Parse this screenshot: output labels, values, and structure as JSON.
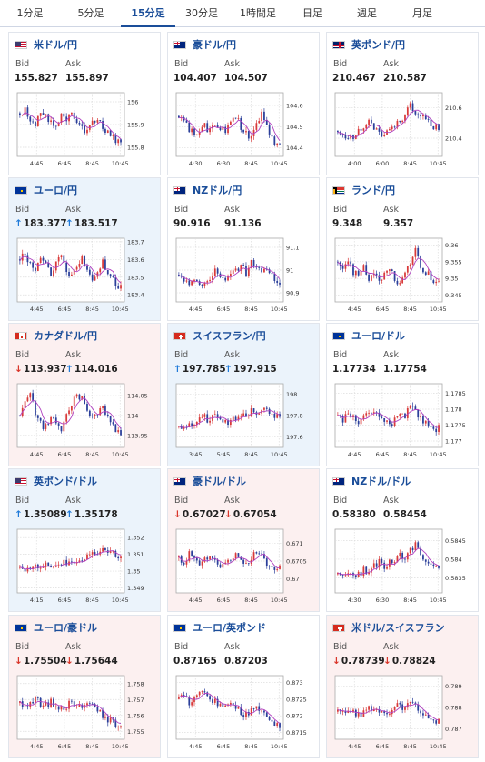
{
  "tabs": [
    "1分足",
    "5分足",
    "15分足",
    "30分足",
    "1時間足",
    "日足",
    "週足",
    "月足"
  ],
  "active_tab": "15分足",
  "labels": {
    "bid": "Bid",
    "ask": "Ask"
  },
  "colors": {
    "accent": "#1a4d99",
    "up_arrow": "#1f7ad9",
    "down_arrow": "#d9362b",
    "candle_up": "#d93a3a",
    "candle_down": "#2b3f9a",
    "ma_line": "#b040c0",
    "card_up_bg": "#ebf3fb",
    "card_down_bg": "#fcf0f0"
  },
  "cards": [
    {
      "name": "米ドル/円",
      "flag": "us",
      "bid": "155.827",
      "ask": "155.897",
      "bid_dir": "none",
      "ask_dir": "none",
      "state": "none",
      "yticks": [
        "156",
        "155.9",
        "155.8"
      ],
      "xticks": [
        "4:45",
        "6:45",
        "8:45",
        "10:45"
      ],
      "chart_data": {
        "type": "candlestick",
        "ylim": [
          155.76,
          156.04
        ],
        "open": 155.95,
        "close": 155.83,
        "values": [
          155.95,
          155.96,
          155.92,
          155.9,
          155.95,
          155.93,
          155.91,
          155.88,
          155.96,
          155.92,
          155.95,
          155.9,
          155.88,
          155.86,
          155.93,
          155.91,
          155.89,
          155.86,
          155.84,
          155.83
        ]
      }
    },
    {
      "name": "豪ドル/円",
      "flag": "au",
      "bid": "104.407",
      "ask": "104.507",
      "bid_dir": "none",
      "ask_dir": "none",
      "state": "none",
      "yticks": [
        "104.6",
        "104.5",
        "104.4"
      ],
      "xticks": [
        "4:30",
        "6:30",
        "8:45",
        "10:45"
      ],
      "chart_data": {
        "type": "candlestick",
        "ylim": [
          104.36,
          104.66
        ],
        "open": 104.55,
        "close": 104.41,
        "values": [
          104.55,
          104.52,
          104.49,
          104.47,
          104.46,
          104.5,
          104.48,
          104.52,
          104.5,
          104.48,
          104.53,
          104.55,
          104.5,
          104.47,
          104.44,
          104.52,
          104.56,
          104.5,
          104.45,
          104.41
        ]
      }
    },
    {
      "name": "英ポンド/円",
      "flag": "gb",
      "bid": "210.467",
      "ask": "210.587",
      "bid_dir": "none",
      "ask_dir": "none",
      "state": "none",
      "yticks": [
        "210.6",
        "210.4"
      ],
      "xticks": [
        "4:00",
        "6:00",
        "8:45",
        "10:45"
      ],
      "chart_data": {
        "type": "candlestick",
        "ylim": [
          210.28,
          210.7
        ],
        "open": 210.45,
        "close": 210.47,
        "values": [
          210.45,
          210.42,
          210.38,
          210.41,
          210.47,
          210.44,
          210.5,
          210.46,
          210.42,
          210.44,
          210.48,
          210.46,
          210.52,
          210.55,
          210.62,
          210.58,
          210.55,
          210.52,
          210.49,
          210.47
        ]
      }
    },
    {
      "name": "ユーロ/円",
      "flag": "eu",
      "bid": "183.377",
      "ask": "183.517",
      "bid_dir": "up",
      "ask_dir": "up",
      "state": "up",
      "yticks": [
        "183.7",
        "183.6",
        "183.5",
        "183.4"
      ],
      "xticks": [
        "4:45",
        "6:45",
        "8:45",
        "10:45"
      ],
      "chart_data": {
        "type": "candlestick",
        "ylim": [
          183.36,
          183.72
        ],
        "open": 183.6,
        "close": 183.45,
        "values": [
          183.6,
          183.63,
          183.58,
          183.55,
          183.6,
          183.56,
          183.53,
          183.58,
          183.61,
          183.55,
          183.5,
          183.57,
          183.62,
          183.55,
          183.48,
          183.52,
          183.58,
          183.52,
          183.48,
          183.45
        ]
      }
    },
    {
      "name": "NZドル/円",
      "flag": "nz",
      "bid": "90.916",
      "ask": "91.136",
      "bid_dir": "none",
      "ask_dir": "none",
      "state": "none",
      "yticks": [
        "91.1",
        "91",
        "90.9"
      ],
      "xticks": [
        "4:45",
        "6:45",
        "8:45",
        "10:45"
      ],
      "chart_data": {
        "type": "candlestick",
        "ylim": [
          90.86,
          91.14
        ],
        "open": 90.98,
        "close": 90.95,
        "values": [
          90.98,
          90.96,
          90.94,
          90.97,
          90.95,
          90.93,
          90.97,
          90.99,
          90.96,
          90.94,
          90.98,
          91.0,
          91.02,
          90.99,
          91.05,
          91.02,
          90.99,
          91.01,
          90.98,
          90.95
        ]
      }
    },
    {
      "name": "ランド/円",
      "flag": "za",
      "bid": "9.348",
      "ask": "9.357",
      "bid_dir": "none",
      "ask_dir": "none",
      "state": "none",
      "yticks": [
        "9.36",
        "9.355",
        "9.35",
        "9.345"
      ],
      "xticks": [
        "4:45",
        "6:45",
        "8:45",
        "10:45"
      ],
      "chart_data": {
        "type": "candlestick",
        "ylim": [
          9.343,
          9.362
        ],
        "open": 9.355,
        "close": 9.349,
        "values": [
          9.355,
          9.354,
          9.356,
          9.352,
          9.351,
          9.353,
          9.35,
          9.352,
          9.349,
          9.351,
          9.353,
          9.35,
          9.348,
          9.351,
          9.355,
          9.358,
          9.354,
          9.352,
          9.35,
          9.349
        ]
      }
    },
    {
      "name": "カナダドル/円",
      "flag": "ca",
      "bid": "113.937",
      "ask": "114.016",
      "bid_dir": "down",
      "ask_dir": "up",
      "state": "down",
      "yticks": [
        "114.05",
        "114",
        "113.95"
      ],
      "xticks": [
        "4:45",
        "6:45",
        "8:45",
        "10:45"
      ],
      "chart_data": {
        "type": "candlestick",
        "ylim": [
          113.92,
          114.08
        ],
        "open": 114.0,
        "close": 113.96,
        "values": [
          114.0,
          114.03,
          114.05,
          114.01,
          113.98,
          113.97,
          114.0,
          113.98,
          113.96,
          114.0,
          114.03,
          114.05,
          114.04,
          114.01,
          113.99,
          114.0,
          114.02,
          113.99,
          113.97,
          113.96
        ]
      }
    },
    {
      "name": "スイスフラン/円",
      "flag": "ch",
      "bid": "197.785",
      "ask": "197.915",
      "bid_dir": "up",
      "ask_dir": "up",
      "state": "up",
      "yticks": [
        "198",
        "197.8",
        "197.6"
      ],
      "xticks": [
        "3:45",
        "5:45",
        "8:45",
        "10:45"
      ],
      "chart_data": {
        "type": "candlestick",
        "ylim": [
          197.5,
          198.1
        ],
        "open": 197.7,
        "close": 197.79,
        "values": [
          197.7,
          197.68,
          197.72,
          197.75,
          197.8,
          197.78,
          197.76,
          197.79,
          197.77,
          197.75,
          197.73,
          197.78,
          197.82,
          197.8,
          197.85,
          197.83,
          197.87,
          197.84,
          197.81,
          197.79
        ]
      }
    },
    {
      "name": "ユーロ/ドル",
      "flag": "eu",
      "bid": "1.17734",
      "ask": "1.17754",
      "bid_dir": "none",
      "ask_dir": "none",
      "state": "none",
      "yticks": [
        "1.1785",
        "1.178",
        "1.1775",
        "1.177"
      ],
      "xticks": [
        "4:45",
        "6:45",
        "8:45",
        "10:45"
      ],
      "chart_data": {
        "type": "candlestick",
        "ylim": [
          1.1768,
          1.1788
        ],
        "open": 1.1778,
        "close": 1.1774,
        "values": [
          1.1778,
          1.1776,
          1.1779,
          1.1777,
          1.1775,
          1.1777,
          1.1779,
          1.178,
          1.1778,
          1.1776,
          1.1775,
          1.1777,
          1.1779,
          1.1778,
          1.1781,
          1.1779,
          1.1777,
          1.1776,
          1.1775,
          1.1774
        ]
      }
    },
    {
      "name": "英ポンド/ドル",
      "flag": "us",
      "bid": "1.35089",
      "ask": "1.35178",
      "bid_dir": "up",
      "ask_dir": "up",
      "state": "up",
      "yticks": [
        "1.352",
        "1.351",
        "1.35",
        "1.349"
      ],
      "xticks": [
        "4:15",
        "6:45",
        "8:45",
        "10:45"
      ],
      "chart_data": {
        "type": "candlestick",
        "ylim": [
          1.3487,
          1.3525
        ],
        "open": 1.3502,
        "close": 1.3509,
        "values": [
          1.3502,
          1.3501,
          1.3503,
          1.3502,
          1.3504,
          1.3503,
          1.3502,
          1.3504,
          1.3505,
          1.3504,
          1.3506,
          1.3507,
          1.3506,
          1.3508,
          1.3512,
          1.351,
          1.3514,
          1.3511,
          1.351,
          1.3509
        ]
      }
    },
    {
      "name": "豪ドル/ドル",
      "flag": "au",
      "bid": "0.67027",
      "ask": "0.67054",
      "bid_dir": "down",
      "ask_dir": "down",
      "state": "down",
      "yticks": [
        "0.671",
        "0.6705",
        "0.67"
      ],
      "xticks": [
        "4:45",
        "6:45",
        "8:45",
        "10:45"
      ],
      "chart_data": {
        "type": "candlestick",
        "ylim": [
          0.6696,
          0.6714
        ],
        "open": 0.6706,
        "close": 0.6703,
        "values": [
          0.6706,
          0.6705,
          0.6707,
          0.6705,
          0.6704,
          0.6705,
          0.6706,
          0.6705,
          0.6704,
          0.6705,
          0.6706,
          0.6707,
          0.6705,
          0.6704,
          0.6706,
          0.6708,
          0.6706,
          0.6704,
          0.6703,
          0.6703
        ]
      }
    },
    {
      "name": "NZドル/ドル",
      "flag": "nz",
      "bid": "0.58380",
      "ask": "0.58454",
      "bid_dir": "none",
      "ask_dir": "none",
      "state": "none",
      "yticks": [
        "0.5845",
        "0.584",
        "0.5835"
      ],
      "xticks": [
        "4:30",
        "6:30",
        "8:45",
        "10:45"
      ],
      "chart_data": {
        "type": "candlestick",
        "ylim": [
          0.5831,
          0.5848
        ],
        "open": 0.5836,
        "close": 0.5838,
        "values": [
          0.5836,
          0.5835,
          0.5836,
          0.5835,
          0.5836,
          0.5837,
          0.5836,
          0.5838,
          0.5839,
          0.5838,
          0.5839,
          0.584,
          0.5841,
          0.584,
          0.5842,
          0.5844,
          0.5841,
          0.584,
          0.5839,
          0.5838
        ]
      }
    },
    {
      "name": "ユーロ/豪ドル",
      "flag": "eu",
      "bid": "1.75504",
      "ask": "1.75644",
      "bid_dir": "down",
      "ask_dir": "down",
      "state": "down",
      "yticks": [
        "1.758",
        "1.757",
        "1.756",
        "1.755"
      ],
      "xticks": [
        "4:45",
        "6:45",
        "8:45",
        "10:45"
      ],
      "chart_data": {
        "type": "candlestick",
        "ylim": [
          1.7545,
          1.7585
        ],
        "open": 1.7568,
        "close": 1.7552,
        "values": [
          1.7568,
          1.7565,
          1.7569,
          1.757,
          1.7567,
          1.7566,
          1.7569,
          1.7567,
          1.7564,
          1.7566,
          1.7568,
          1.7565,
          1.7567,
          1.7569,
          1.7566,
          1.7563,
          1.756,
          1.7558,
          1.7555,
          1.7552
        ]
      }
    },
    {
      "name": "ユーロ/英ポンド",
      "flag": "eu",
      "bid": "0.87165",
      "ask": "0.87203",
      "bid_dir": "none",
      "ask_dir": "none",
      "state": "none",
      "yticks": [
        "0.873",
        "0.8725",
        "0.872",
        "0.8715"
      ],
      "xticks": [
        "4:45",
        "6:45",
        "8:45",
        "10:45"
      ],
      "chart_data": {
        "type": "candlestick",
        "ylim": [
          0.8713,
          0.8732
        ],
        "open": 0.8725,
        "close": 0.8717,
        "values": [
          0.8725,
          0.8726,
          0.8724,
          0.8725,
          0.8727,
          0.8726,
          0.8724,
          0.8725,
          0.8723,
          0.8722,
          0.8724,
          0.8723,
          0.8721,
          0.872,
          0.8722,
          0.8724,
          0.8721,
          0.8719,
          0.8718,
          0.8717
        ]
      }
    },
    {
      "name": "米ドル/スイスフラン",
      "flag": "ch",
      "bid": "0.78739",
      "ask": "0.78824",
      "bid_dir": "down",
      "ask_dir": "down",
      "state": "down",
      "yticks": [
        "0.789",
        "0.788",
        "0.787"
      ],
      "xticks": [
        "4:45",
        "6:45",
        "8:45",
        "10:45"
      ],
      "chart_data": {
        "type": "candlestick",
        "ylim": [
          0.7865,
          0.7895
        ],
        "open": 0.7878,
        "close": 0.7874,
        "values": [
          0.7878,
          0.7879,
          0.7877,
          0.7878,
          0.7876,
          0.7877,
          0.7879,
          0.7878,
          0.7877,
          0.7876,
          0.7878,
          0.788,
          0.7882,
          0.7879,
          0.7883,
          0.7881,
          0.7878,
          0.7876,
          0.7875,
          0.7874
        ]
      }
    }
  ]
}
